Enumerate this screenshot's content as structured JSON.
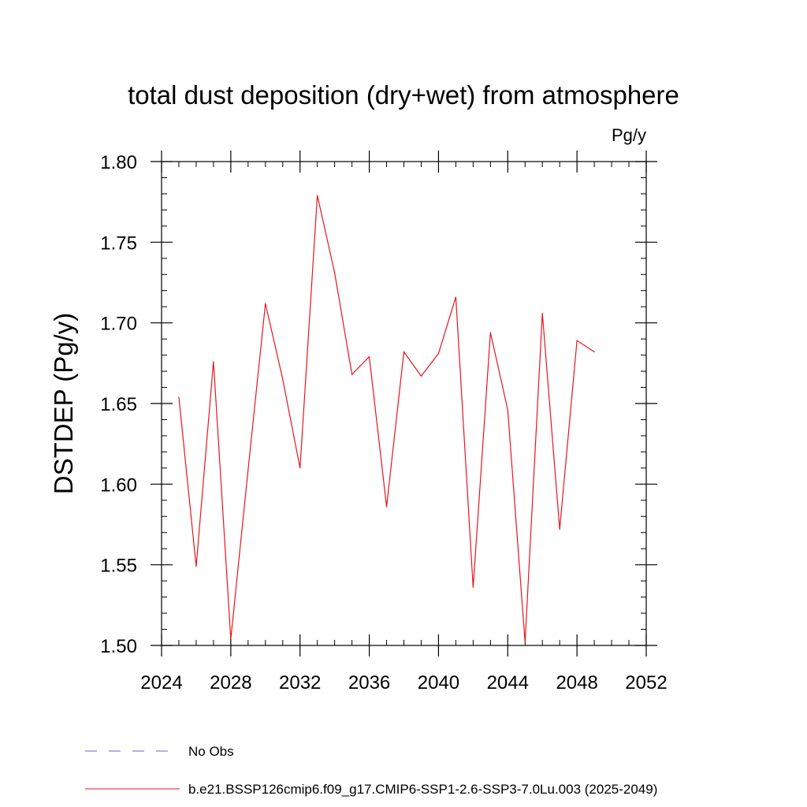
{
  "chart_data": {
    "type": "line",
    "title": "total dust deposition (dry+wet) from atmosphere",
    "units": "Pg/y",
    "ylabel": "DSTDEP  (Pg/y)",
    "xlabel": "",
    "xlim": [
      2024,
      2052
    ],
    "ylim": [
      1.5,
      1.8
    ],
    "x_ticks": [
      2024,
      2028,
      2032,
      2036,
      2040,
      2044,
      2048,
      2052
    ],
    "y_ticks": [
      1.5,
      1.55,
      1.6,
      1.65,
      1.7,
      1.75,
      1.8
    ],
    "x_tick_labels": [
      "2024",
      "2028",
      "2032",
      "2036",
      "2040",
      "2044",
      "2048",
      "2052"
    ],
    "y_tick_labels": [
      "1.50",
      "1.55",
      "1.60",
      "1.65",
      "1.70",
      "1.75",
      "1.80"
    ],
    "x_minor_step": 1,
    "y_minor_step": 0.01,
    "grid": false,
    "series": [
      {
        "name": "b.e21.BSSP126cmip6.f09_g17.CMIP6-SSP1-2.6-SSP3-7.0Lu.003 (2025-2049)",
        "color": "#e8141c",
        "style": "solid",
        "x": [
          2025,
          2026,
          2027,
          2028,
          2029,
          2030,
          2031,
          2032,
          2033,
          2034,
          2035,
          2036,
          2037,
          2038,
          2039,
          2040,
          2041,
          2042,
          2043,
          2044,
          2045,
          2046,
          2047,
          2048,
          2049
        ],
        "values": [
          1.654,
          1.549,
          1.676,
          1.504,
          1.609,
          1.712,
          1.665,
          1.61,
          1.779,
          1.731,
          1.668,
          1.679,
          1.586,
          1.682,
          1.667,
          1.681,
          1.716,
          1.536,
          1.694,
          1.646,
          1.502,
          1.706,
          1.572,
          1.689,
          1.682
        ]
      }
    ],
    "legend": [
      {
        "label": "No Obs",
        "color": "#6b5fc4",
        "style": "dashed"
      },
      {
        "label": "b.e21.BSSP126cmip6.f09_g17.CMIP6-SSP1-2.6-SSP3-7.0Lu.003 (2025-2049)",
        "color": "#e8141c",
        "style": "solid"
      }
    ],
    "legend_position": "bottom-left"
  }
}
